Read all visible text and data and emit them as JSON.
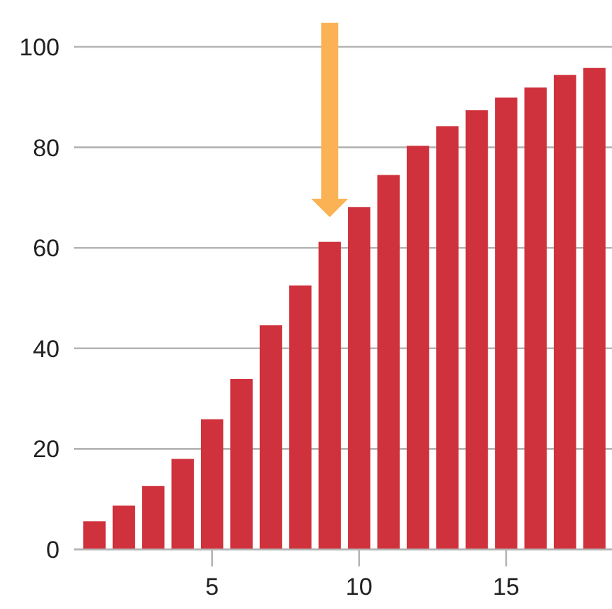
{
  "chart_data": {
    "type": "bar",
    "x": [
      1,
      2,
      3,
      4,
      5,
      6,
      7,
      8,
      9,
      10,
      11,
      12,
      13,
      14,
      15,
      16,
      17,
      18
    ],
    "values": [
      5.6,
      8.7,
      12.6,
      18.0,
      25.9,
      33.9,
      44.6,
      52.5,
      61.2,
      68.1,
      74.5,
      80.3,
      84.2,
      87.4,
      89.9,
      91.9,
      94.4,
      95.8
    ],
    "color": "#cf323c",
    "xlim": [
      0.3,
      18.6
    ],
    "xticks": [
      5,
      10,
      15
    ],
    "ylim": [
      0,
      100
    ],
    "yticks": [
      0,
      20,
      40,
      60,
      80,
      100
    ],
    "grid": "y"
  }
}
